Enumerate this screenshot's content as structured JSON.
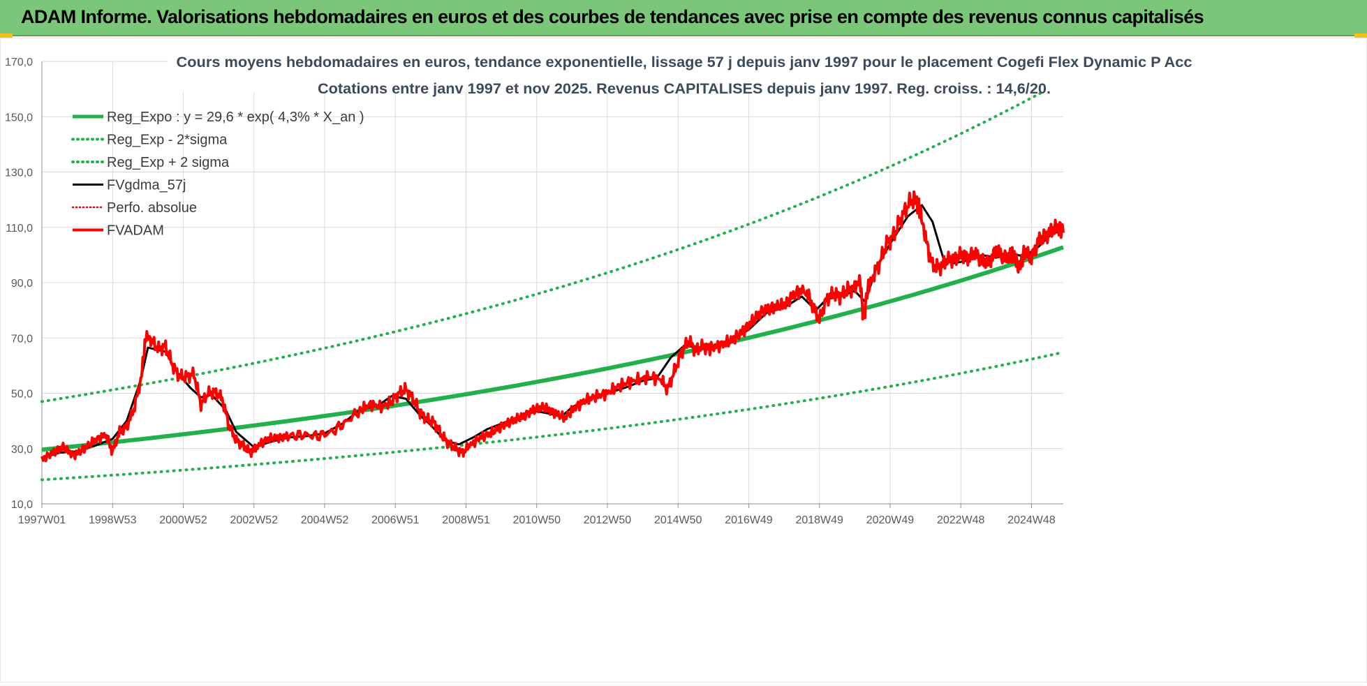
{
  "banner": {
    "title": "ADAM Informe. Valorisations hebdomadaires en euros et des courbes de tendances avec prise en compte des revenus connus capitalisés"
  },
  "colors": {
    "banner_bg": "#7ac77a",
    "reg_green": "#22b04b",
    "fvadam_red": "#ff0000",
    "fvgdma_black": "#000000",
    "perfo_red": "#e00000",
    "grid": "#d9d9d9",
    "title_text": "#3d4a5c"
  },
  "chart_data": {
    "type": "line",
    "title_line1": "Cours moyens hebdomadaires en euros, tendance exponentielle, lissage 57 j depuis janv 1997 pour le placement Cogefi Flex Dynamic P Acc",
    "title_line2": "Cotations entre janv 1997 et nov 2025. Revenus CAPITALISES depuis janv 1997. Reg. croiss. : 14,6/20.",
    "xlabel": "",
    "ylabel": "",
    "xlim": [
      1997.0,
      2025.9
    ],
    "ylim": [
      10,
      170
    ],
    "grid": true,
    "legend_position": "top-left",
    "y_ticks": [
      "170,0",
      "150,0",
      "130,0",
      "110,0",
      "90,0",
      "70,0",
      "50,0",
      "30,0",
      "10,0"
    ],
    "y_tick_values": [
      170,
      150,
      130,
      110,
      90,
      70,
      50,
      30,
      10
    ],
    "x_ticks": [
      "1997W01",
      "1998W53",
      "2000W52",
      "2002W52",
      "2004W52",
      "2006W51",
      "2008W51",
      "2010W50",
      "2012W50",
      "2014W50",
      "2016W49",
      "2018W49",
      "2020W49",
      "2022W48",
      "2024W48"
    ],
    "x_tick_values": [
      1997.0,
      1999.0,
      2001.0,
      2003.0,
      2005.0,
      2007.0,
      2009.0,
      2011.0,
      2013.0,
      2015.0,
      2017.0,
      2019.0,
      2021.0,
      2023.0,
      2025.0
    ],
    "series": [
      {
        "name": "Reg_Expo : y = 29,6 * exp( 4,3% *  X_an )",
        "style": "solid-thick",
        "x": [
          1997.0,
          2000.0,
          2003.0,
          2006.0,
          2009.0,
          2012.0,
          2015.0,
          2018.0,
          2021.0,
          2024.0,
          2025.9
        ],
        "values": [
          29.6,
          33.7,
          38.3,
          43.6,
          49.6,
          56.5,
          64.3,
          73.1,
          83.2,
          94.7,
          102.8
        ]
      },
      {
        "name": "Reg_Exp - 2*sigma",
        "style": "dotted",
        "x": [
          1997.0,
          2000.0,
          2003.0,
          2006.0,
          2009.0,
          2012.0,
          2015.0,
          2018.0,
          2021.0,
          2024.0,
          2025.9
        ],
        "values": [
          18.7,
          21.3,
          24.2,
          27.5,
          31.3,
          35.6,
          40.6,
          46.1,
          52.5,
          59.7,
          64.8
        ]
      },
      {
        "name": "Reg_Exp + 2 sigma",
        "style": "dotted",
        "x": [
          1997.0,
          2000.0,
          2003.0,
          2006.0,
          2009.0,
          2012.0,
          2015.0,
          2018.0,
          2021.0,
          2024.0,
          2025.9
        ],
        "values": [
          47.0,
          53.5,
          60.8,
          69.2,
          78.7,
          89.6,
          102.0,
          116.0,
          132.0,
          150.2,
          163.0
        ]
      },
      {
        "name": "FVgdma_57j",
        "style": "solid",
        "x": [
          1997.0,
          1997.5,
          1998.0,
          1998.5,
          1999.0,
          1999.4,
          1999.8,
          2000.0,
          2000.5,
          2000.8,
          2001.2,
          2001.5,
          2001.8,
          2002.2,
          2002.5,
          2003.0,
          2003.5,
          2004.0,
          2004.5,
          2005.0,
          2005.5,
          2006.0,
          2006.5,
          2006.9,
          2007.3,
          2007.7,
          2008.0,
          2008.4,
          2008.8,
          2009.2,
          2009.6,
          2010.0,
          2010.5,
          2011.0,
          2011.4,
          2011.7,
          2012.0,
          2012.5,
          2013.0,
          2013.5,
          2014.0,
          2014.4,
          2014.8,
          2015.2,
          2015.6,
          2016.0,
          2016.5,
          2017.0,
          2017.5,
          2018.0,
          2018.5,
          2018.9,
          2019.2,
          2019.6,
          2020.0,
          2020.3,
          2020.6,
          2021.0,
          2021.5,
          2021.9,
          2022.2,
          2022.5,
          2022.8,
          2023.2,
          2023.6,
          2024.0,
          2024.4,
          2024.8,
          2025.2,
          2025.6,
          2025.9
        ],
        "values": [
          26.5,
          28.5,
          29.0,
          31.0,
          33.5,
          40.0,
          55.0,
          66.5,
          65.0,
          58.0,
          52.0,
          48.5,
          49.5,
          44.0,
          36.0,
          30.5,
          32.5,
          34.0,
          34.5,
          35.5,
          39.0,
          44.0,
          45.5,
          49.0,
          48.0,
          42.0,
          38.5,
          33.0,
          31.5,
          34.0,
          37.0,
          39.0,
          41.5,
          43.5,
          42.5,
          41.5,
          45.0,
          48.0,
          50.0,
          52.0,
          54.5,
          55.5,
          63.0,
          67.5,
          66.0,
          67.0,
          69.0,
          73.0,
          79.0,
          81.0,
          85.0,
          80.0,
          84.0,
          85.0,
          87.0,
          83.0,
          95.0,
          104.0,
          114.0,
          118.0,
          112.0,
          99.0,
          97.0,
          98.0,
          100.0,
          99.0,
          100.5,
          99.5,
          103.0,
          108.0,
          108.5
        ]
      },
      {
        "name": "Perfo. absolue",
        "style": "dotted-thin",
        "x": [],
        "values": []
      },
      {
        "name": "FVADAM",
        "style": "solid-thick",
        "x": [
          1997.0,
          1997.3,
          1997.6,
          1997.9,
          1998.2,
          1998.5,
          1998.8,
          1999.0,
          1999.2,
          1999.4,
          1999.6,
          1999.8,
          1999.95,
          2000.1,
          2000.3,
          2000.5,
          2000.7,
          2000.9,
          2001.1,
          2001.3,
          2001.5,
          2001.7,
          2001.9,
          2002.1,
          2002.3,
          2002.5,
          2002.7,
          2002.9,
          2003.1,
          2003.4,
          2003.7,
          2004.0,
          2004.4,
          2004.8,
          2005.2,
          2005.6,
          2006.0,
          2006.3,
          2006.6,
          2006.9,
          2007.1,
          2007.3,
          2007.5,
          2007.7,
          2007.9,
          2008.1,
          2008.3,
          2008.5,
          2008.7,
          2008.9,
          2009.1,
          2009.4,
          2009.7,
          2010.0,
          2010.3,
          2010.6,
          2010.9,
          2011.2,
          2011.5,
          2011.8,
          2012.1,
          2012.4,
          2012.7,
          2013.0,
          2013.3,
          2013.6,
          2013.9,
          2014.2,
          2014.5,
          2014.7,
          2014.9,
          2015.1,
          2015.3,
          2015.5,
          2015.7,
          2015.9,
          2016.2,
          2016.5,
          2016.8,
          2017.1,
          2017.4,
          2017.7,
          2018.0,
          2018.3,
          2018.6,
          2018.8,
          2019.0,
          2019.2,
          2019.4,
          2019.6,
          2019.8,
          2020.0,
          2020.15,
          2020.25,
          2020.35,
          2020.5,
          2020.7,
          2020.9,
          2021.1,
          2021.3,
          2021.5,
          2021.7,
          2021.85,
          2022.0,
          2022.2,
          2022.4,
          2022.6,
          2022.8,
          2023.0,
          2023.2,
          2023.4,
          2023.6,
          2023.8,
          2024.0,
          2024.2,
          2024.4,
          2024.55,
          2024.65,
          2024.8,
          2025.0,
          2025.2,
          2025.4,
          2025.6,
          2025.8,
          2025.9
        ],
        "values": [
          26.0,
          28.5,
          30.5,
          27.5,
          30.0,
          33.0,
          35.0,
          29.0,
          36.0,
          38.0,
          44.0,
          55.0,
          71.0,
          69.0,
          66.0,
          67.0,
          60.0,
          56.0,
          56.0,
          57.0,
          46.0,
          50.0,
          50.5,
          48.0,
          38.0,
          33.0,
          31.0,
          28.5,
          31.0,
          33.5,
          34.0,
          34.5,
          35.0,
          34.5,
          36.0,
          39.5,
          44.0,
          46.0,
          45.0,
          47.0,
          50.0,
          51.5,
          48.0,
          43.0,
          40.5,
          39.5,
          35.0,
          32.0,
          30.0,
          28.5,
          31.0,
          34.0,
          35.5,
          38.0,
          40.0,
          41.5,
          44.0,
          45.0,
          43.0,
          41.0,
          45.0,
          47.5,
          49.0,
          50.0,
          52.5,
          54.0,
          55.0,
          56.0,
          55.0,
          51.5,
          58.0,
          65.0,
          69.0,
          65.5,
          67.0,
          66.0,
          67.5,
          69.0,
          72.0,
          76.0,
          80.0,
          81.0,
          82.0,
          86.0,
          87.5,
          82.0,
          76.5,
          84.0,
          86.0,
          85.0,
          87.5,
          88.0,
          91.0,
          76.0,
          87.0,
          92.0,
          97.0,
          104.0,
          107.0,
          113.0,
          118.0,
          121.0,
          116.0,
          106.0,
          96.0,
          95.5,
          98.0,
          98.5,
          100.0,
          99.0,
          100.5,
          98.0,
          97.0,
          102.0,
          99.0,
          100.0,
          98.5,
          95.0,
          101.0,
          99.0,
          105.0,
          107.0,
          109.0,
          110.5,
          108.0
        ]
      }
    ]
  }
}
